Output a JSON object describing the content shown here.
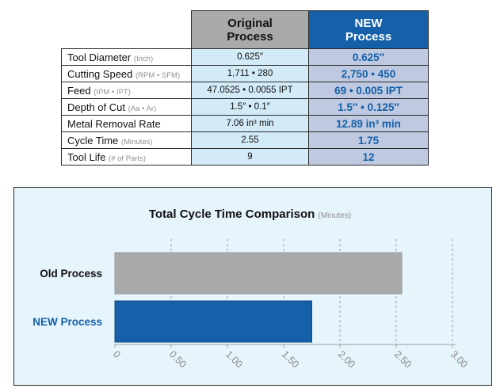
{
  "table": {
    "headers": {
      "original": [
        "Original",
        "Process"
      ],
      "new": [
        "NEW",
        "Process"
      ]
    },
    "rows": [
      {
        "label": "Tool Diameter",
        "unit": "(Inch)",
        "original": "0.625″",
        "new": "0.625″"
      },
      {
        "label": "Cutting Speed",
        "unit": "(RPM • SFM)",
        "original": "1,711 • 280",
        "new": "2,750 • 450"
      },
      {
        "label": "Feed",
        "unit": "(IPM • IPT)",
        "original": "47.0525 • 0.0055 IPT",
        "new": "69 • 0.005 IPT"
      },
      {
        "label": "Depth of Cut",
        "unit": "(Aa • Ar)",
        "original": "1.5″ • 0.1″",
        "new": "1.5″ • 0.125″"
      },
      {
        "label": "Metal Removal Rate",
        "unit": "",
        "original": "7.06 in³ min",
        "new": "12.89 in³ min"
      },
      {
        "label": "Cycle Time",
        "unit": "(Minutes)",
        "original": "2.55",
        "new": "1.75"
      },
      {
        "label": "Tool Life",
        "unit": "(# of Parts)",
        "original": "9",
        "new": "12"
      }
    ]
  },
  "chart_data": {
    "type": "bar",
    "orientation": "horizontal",
    "title": "Total Cycle Time Comparison",
    "title_unit": "(Minutes)",
    "categories": [
      "Old Process",
      "NEW Process"
    ],
    "values": [
      2.55,
      1.75
    ],
    "tick_labels": [
      "0",
      "0.50",
      "1.00",
      "1.50",
      "2.00",
      "2.50",
      "3.00"
    ],
    "xlim": [
      0,
      3.0
    ],
    "grid": true,
    "colors": {
      "old_bar": "#a8a9ab",
      "new_bar": "#1560a8",
      "old_label": "#111111",
      "new_label": "#1560a8",
      "grid": "#9aa5ad",
      "tick_text": "#8a8a8a",
      "panel_bg": "#e6f4fb"
    }
  }
}
